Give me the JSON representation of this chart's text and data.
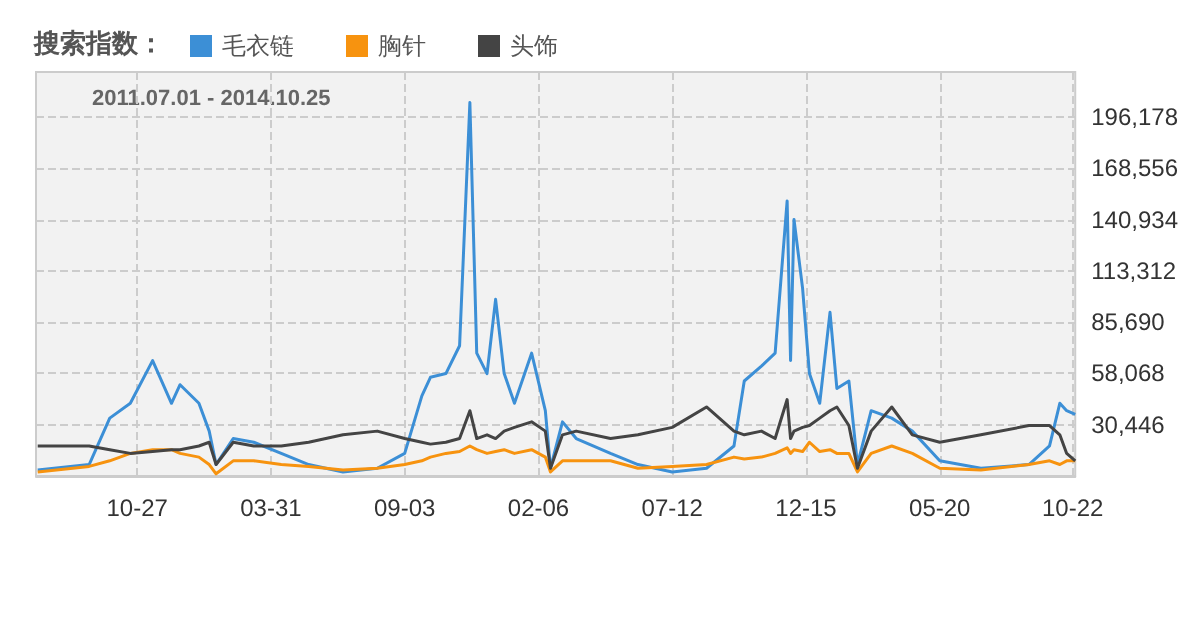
{
  "chart_data": {
    "type": "line",
    "title": "搜索指数：",
    "annotations": [
      "2011.07.01 - 2014.10.25"
    ],
    "x": [
      "2011-07-03",
      "2011-09-01",
      "2011-09-25",
      "2011-10-19",
      "2011-11-14",
      "2011-12-06",
      "2011-12-16",
      "2012-01-07",
      "2012-01-19",
      "2012-01-27",
      "2012-02-16",
      "2012-03-11",
      "2012-04-12",
      "2012-05-14",
      "2012-06-23",
      "2012-08-02",
      "2012-09-03",
      "2012-09-23",
      "2012-10-03",
      "2012-10-21",
      "2012-11-06",
      "2012-11-18",
      "2012-11-26",
      "2012-12-08",
      "2012-12-18",
      "2012-12-28",
      "2013-01-09",
      "2013-01-29",
      "2013-02-14",
      "2013-02-20",
      "2013-03-06",
      "2013-03-22",
      "2013-05-01",
      "2013-06-02",
      "2013-07-12",
      "2013-08-21",
      "2013-09-22",
      "2013-10-04",
      "2013-10-24",
      "2013-11-09",
      "2013-11-23",
      "2013-11-27",
      "2013-12-01",
      "2013-12-11",
      "2013-12-19",
      "2013-12-31",
      "2014-01-12",
      "2014-01-20",
      "2014-02-03",
      "2014-02-13",
      "2014-03-01",
      "2014-03-25",
      "2014-04-18",
      "2014-05-20",
      "2014-07-07",
      "2014-09-01",
      "2014-09-25",
      "2014-10-07",
      "2014-10-15",
      "2014-10-25"
    ],
    "series": [
      {
        "name": "毛衣链",
        "color": "#3c8fd6",
        "values": [
          6000,
          9000,
          34000,
          42000,
          65000,
          42000,
          52000,
          42000,
          27000,
          9000,
          23000,
          21000,
          15000,
          9000,
          5000,
          7000,
          15000,
          46000,
          56000,
          58000,
          73000,
          204000,
          69000,
          58000,
          98000,
          58000,
          42000,
          69000,
          38000,
          7000,
          32000,
          23000,
          15000,
          9000,
          5000,
          7000,
          19000,
          54000,
          62000,
          69000,
          151000,
          65000,
          141000,
          104000,
          58000,
          42000,
          91000,
          50000,
          54000,
          9000,
          38000,
          34000,
          27000,
          11000,
          7000,
          9000,
          19000,
          42000,
          38000,
          36000
        ]
      },
      {
        "name": "胸针",
        "color": "#f7930f",
        "values": [
          5000,
          8000,
          11000,
          15000,
          17000,
          17000,
          15000,
          13000,
          9000,
          4000,
          11000,
          11000,
          9000,
          8000,
          6000,
          7000,
          9000,
          11000,
          13000,
          15000,
          16000,
          19000,
          17000,
          15000,
          16000,
          17000,
          15000,
          17000,
          13000,
          5000,
          11000,
          11000,
          11000,
          7000,
          8000,
          9000,
          13000,
          12000,
          13000,
          15000,
          18000,
          15000,
          17000,
          16000,
          21000,
          16000,
          17000,
          15000,
          15000,
          5000,
          15000,
          19000,
          15000,
          7000,
          6000,
          9000,
          11000,
          9000,
          11000,
          11000
        ]
      },
      {
        "name": "头饰",
        "color": "#444444",
        "values": [
          19000,
          19000,
          17000,
          15000,
          16000,
          17000,
          17000,
          19000,
          21000,
          9000,
          21000,
          19000,
          19000,
          21000,
          25000,
          27000,
          23000,
          21000,
          20000,
          21000,
          23000,
          38000,
          23000,
          25000,
          23000,
          27000,
          29000,
          32000,
          27000,
          7000,
          25000,
          27000,
          23000,
          25000,
          29000,
          40000,
          27000,
          25000,
          27000,
          23000,
          44000,
          23000,
          27000,
          29000,
          30000,
          34000,
          38000,
          40000,
          30000,
          7000,
          27000,
          40000,
          25000,
          21000,
          25000,
          30000,
          30000,
          25000,
          15000,
          11000
        ]
      }
    ],
    "xlim": [
      "2011-07-01",
      "2014-10-25"
    ],
    "xticks": [
      {
        "value": "2011-10-27",
        "label": "10-27"
      },
      {
        "value": "2012-03-31",
        "label": "03-31"
      },
      {
        "value": "2012-09-03",
        "label": "09-03"
      },
      {
        "value": "2013-02-06",
        "label": "02-06"
      },
      {
        "value": "2013-07-12",
        "label": "07-12"
      },
      {
        "value": "2013-12-15",
        "label": "12-15"
      },
      {
        "value": "2014-05-20",
        "label": "05-20"
      },
      {
        "value": "2014-10-22",
        "label": "10-22"
      }
    ],
    "ylim": [
      2824,
      220458
    ],
    "yticks": [
      {
        "value": 30446,
        "label": "30,446"
      },
      {
        "value": 58068,
        "label": "58,068"
      },
      {
        "value": 85690,
        "label": "85,690"
      },
      {
        "value": 113312,
        "label": "113,312"
      },
      {
        "value": 140934,
        "label": "140,934"
      },
      {
        "value": 168556,
        "label": "168,556"
      },
      {
        "value": 196178,
        "label": "196,178"
      }
    ],
    "grid": true,
    "legend": "top left",
    "marker": "none",
    "line_style": "solid"
  }
}
